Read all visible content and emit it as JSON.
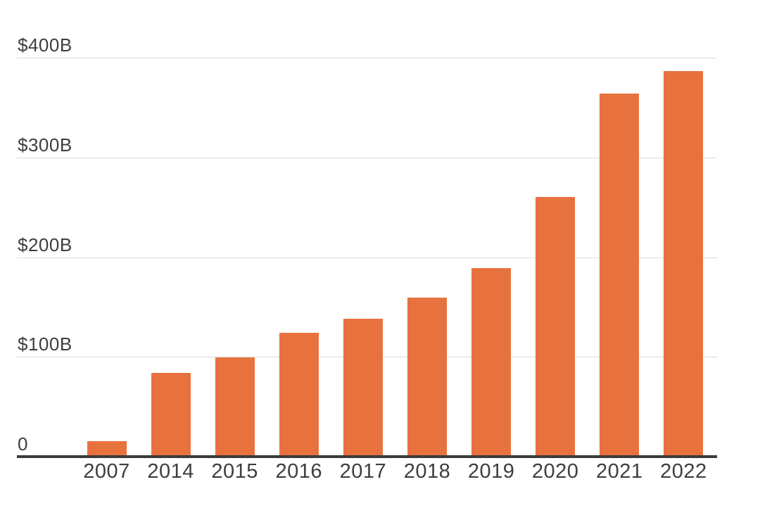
{
  "chart": {
    "background_color": "#ffffff",
    "bar_color": "#e8723e",
    "grid_color": "#dbdbdb",
    "axis_color": "#3b3b3b",
    "text_color": "#3e3e3e"
  },
  "chart_data": {
    "type": "bar",
    "title": "",
    "xlabel": "",
    "ylabel": "",
    "unit": "$B",
    "categories": [
      "2007",
      "2014",
      "2015",
      "2016",
      "2017",
      "2018",
      "2019",
      "2020",
      "2021",
      "2022"
    ],
    "values": [
      16,
      85,
      100,
      125,
      139,
      160,
      190,
      261,
      365,
      387
    ],
    "ylim": [
      0,
      400
    ],
    "y_ticks": [
      {
        "value": 400,
        "label": "$400B"
      },
      {
        "value": 300,
        "label": "$300B"
      },
      {
        "value": 200,
        "label": "$200B"
      },
      {
        "value": 100,
        "label": "$100B"
      },
      {
        "value": 0,
        "label": "0"
      }
    ],
    "grid": "horizontal",
    "legend_position": "none"
  }
}
